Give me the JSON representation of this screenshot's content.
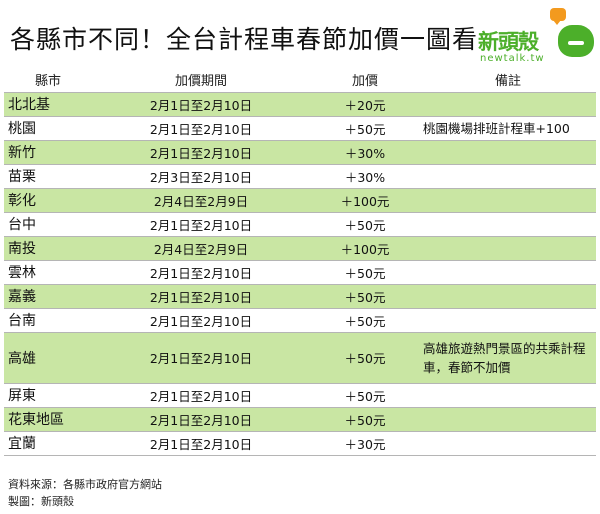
{
  "title": "各縣市不同！全台計程車春節加價一圖看",
  "logo": {
    "name": "新頭殼",
    "sub": "newtalk.tw"
  },
  "table": {
    "headers": {
      "area": "縣市",
      "period": "加價期間",
      "price": "加價",
      "note": "備註"
    },
    "rows": [
      {
        "area": "北北基",
        "period": "2月1日至2月10日",
        "price": "＋20元",
        "note": "",
        "highlight": true
      },
      {
        "area": "桃園",
        "period": "2月1日至2月10日",
        "price": "＋50元",
        "note": "桃園機場排班計程車+100",
        "highlight": false
      },
      {
        "area": "新竹",
        "period": "2月1日至2月10日",
        "price": "＋30%",
        "note": "",
        "highlight": true
      },
      {
        "area": "苗栗",
        "period": "2月3日至2月10日",
        "price": "＋30%",
        "note": "",
        "highlight": false
      },
      {
        "area": "彰化",
        "period": "2月4日至2月9日",
        "price": "＋100元",
        "note": "",
        "highlight": true
      },
      {
        "area": "台中",
        "period": "2月1日至2月10日",
        "price": "＋50元",
        "note": "",
        "highlight": false
      },
      {
        "area": "南投",
        "period": "2月4日至2月9日",
        "price": "＋100元",
        "note": "",
        "highlight": true
      },
      {
        "area": "雲林",
        "period": "2月1日至2月10日",
        "price": "＋50元",
        "note": "",
        "highlight": false
      },
      {
        "area": "嘉義",
        "period": "2月1日至2月10日",
        "price": "＋50元",
        "note": "",
        "highlight": true
      },
      {
        "area": "台南",
        "period": "2月1日至2月10日",
        "price": "＋50元",
        "note": "",
        "highlight": false
      },
      {
        "area": "高雄",
        "period": "2月1日至2月10日",
        "price": "＋50元",
        "note": "高雄旅遊熱門景區的共乘計程車，春節不加價",
        "highlight": true,
        "tall": true
      },
      {
        "area": "屏東",
        "period": "2月1日至2月10日",
        "price": "＋50元",
        "note": "",
        "highlight": false
      },
      {
        "area": "花東地區",
        "period": "2月1日至2月10日",
        "price": "＋50元",
        "note": "",
        "highlight": true
      },
      {
        "area": "宜蘭",
        "period": "2月1日至2月10日",
        "price": "＋30元",
        "note": "",
        "highlight": false
      }
    ]
  },
  "footer": {
    "source": "資料來源：各縣市政府官方網站",
    "maker": "製圖：新頭殼"
  }
}
